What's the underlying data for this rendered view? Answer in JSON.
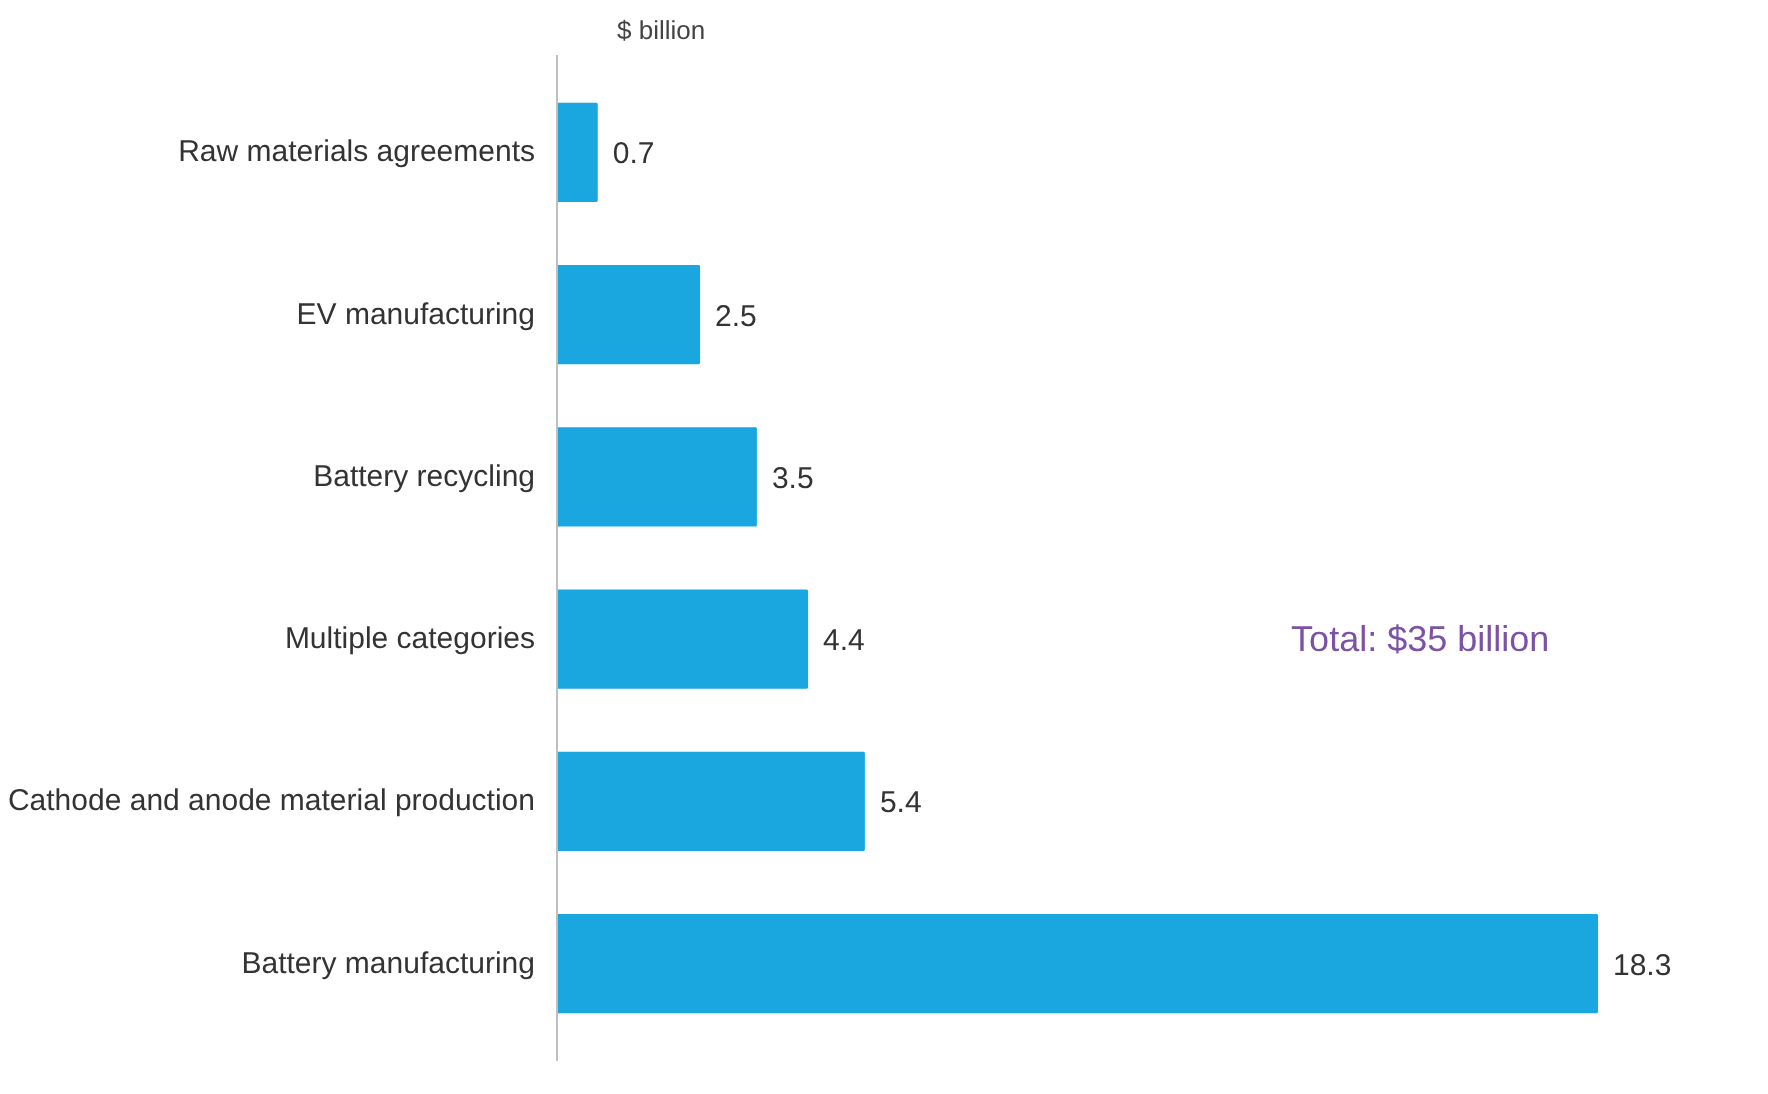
{
  "chart_data": {
    "type": "bar",
    "orientation": "horizontal",
    "ylabel": "$ billion",
    "categories": [
      "Raw materials agreements",
      "EV manufacturing",
      "Battery recycling",
      "Multiple categories",
      "Cathode and anode material production",
      "Battery manufacturing"
    ],
    "values": [
      0.7,
      2.5,
      3.5,
      4.4,
      5.4,
      18.3
    ],
    "color": "#1aa7e0",
    "data_labels": true,
    "grid": false,
    "annotations": [
      "Total: $35 billion"
    ]
  }
}
